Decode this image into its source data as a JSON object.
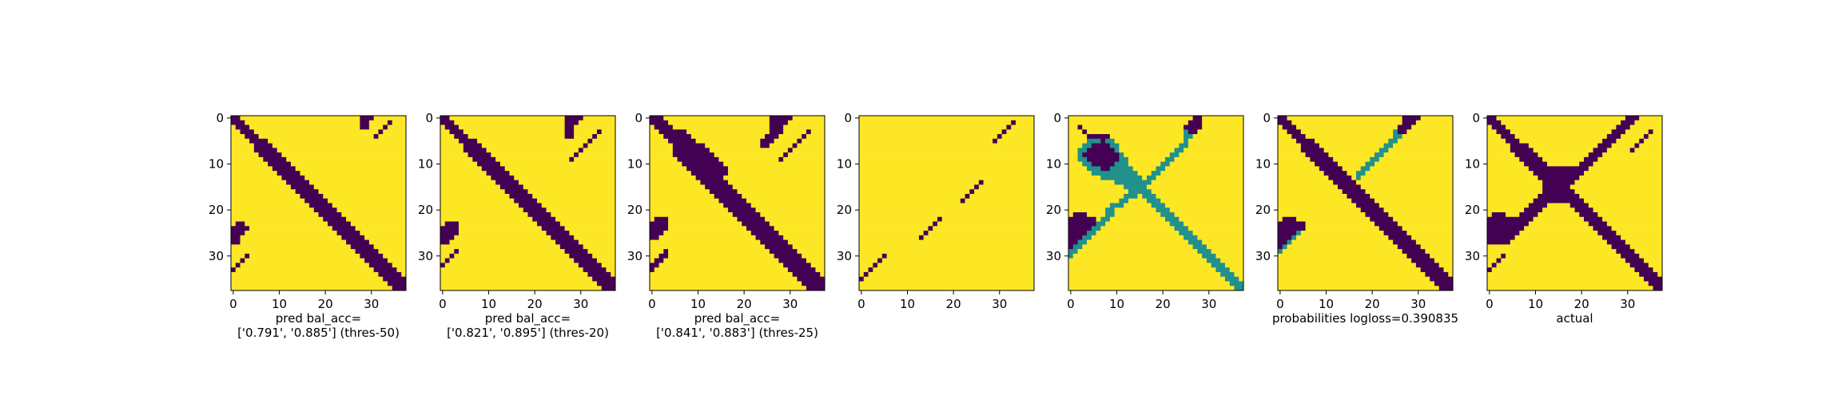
{
  "colors": {
    "low": "#440154",
    "mid": "#21918c",
    "high": "#fde725",
    "axis": "#000000",
    "background": "#ffffff"
  },
  "chart_data": [
    {
      "type": "heatmap",
      "grid_size": 38,
      "xticks": [
        0,
        10,
        20,
        30
      ],
      "yticks": [
        0,
        10,
        20,
        30
      ],
      "xlabel_lines": [
        "pred bal_acc=",
        "['0.791', '0.885'] (thres-50)"
      ],
      "matrix": [
        "11000000000000000000000000001110000000",
        "11100000000000000000000000001100001000",
        "01110000000000000000000000001100010000",
        "00111000000000000000000000000000100000",
        "00011100000000000000000000000001000000",
        "00001111000000000000000000000000000000",
        "00000111100000000000000000000000000000",
        "00000111110000000000000000000000000000",
        "00000011111000000000000000000000000000",
        "00000001111100000000000000000000000000",
        "00000000111110000000000000000000000000",
        "00000000011111000000000000000000000000",
        "00000000001111100000000000000000000000",
        "00000000000111110000000000000000000000",
        "00000000000011111000000000000000000000",
        "00000000000001111100000000000000000000",
        "00000000000000111110000000000000000000",
        "00000000000000011111000000000000000000",
        "00000000000000001111100000000000000000",
        "00000000000000000111110000000000000000",
        "00000000000000000011111000000000000000",
        "00000000000000000001111100000000000000",
        "00000000000000000000111110000000000000",
        "01100000000000000000011111000000000000",
        "11110000000000000000001111100000000000",
        "11100000000000000000000111110000000000",
        "11000000000000000000000011111000000000",
        "11000000000000000000000001111100000000",
        "00000000000000000000000000111110000000",
        "00000000000000000000000000011111000000",
        "00010000000000000000000000001111100000",
        "00100000000000000000000000000111110000",
        "01000000000000000000000000000011111000",
        "10000000000000000000000000000001111100",
        "00000000000000000000000000000000111110",
        "00000000000000000000000000000000011111",
        "00000000000000000000000000000000001111",
        "00000000000000000000000000000000000111"
      ]
    },
    {
      "type": "heatmap",
      "grid_size": 38,
      "xticks": [
        0,
        10,
        20,
        30
      ],
      "yticks": [
        0,
        10,
        20,
        30
      ],
      "xlabel_lines": [
        "pred bal_acc=",
        "['0.821', '0.895'] (thres-20)"
      ],
      "matrix": [
        "11000000000000000000000000011110000000",
        "11100000000000000000000000011100000000",
        "01110000000000000000000000011000000000",
        "00111000000000000000000000011000001000",
        "00011100000000000000000000011000010000",
        "00001111000000000000000000000000100000",
        "00000111100000000000000000000001000000",
        "00000111110000000000000000000010000000",
        "00000011111000000000000000000100000000",
        "00000001111100000000000000001000000000",
        "00000000111110000000000000000000000000",
        "00000000011111000000000000000000000000",
        "00000000001111100000000000000000000000",
        "00000000000111110000000000000000000000",
        "00000000000011111000000000000000000000",
        "00000000000001111100000000000000000000",
        "00000000000000111110000000000000000000",
        "00000000000000011111000000000000000000",
        "00000000000000001111100000000000000000",
        "00000000000000000111110000000000000000",
        "00000000000000000011111000000000000000",
        "00000000000000000001111100000000000000",
        "00000000000000000000111110000000000000",
        "01110000000000000000011111000000000000",
        "11110000000000000000001111100000000000",
        "11110000000000000000000111110000000000",
        "11100000000000000000000011111000000000",
        "11000000000000000000000001111100000000",
        "00000000000000000000000000111110000000",
        "00010000000000000000000000011111000000",
        "00100000000000000000000000001111100000",
        "01000000000000000000000000000111110000",
        "10000000000000000000000000000011111000",
        "00000000000000000000000000000001111100",
        "00000000000000000000000000000000111110",
        "00000000000000000000000000000000011111",
        "00000000000000000000000000000000001111",
        "00000000000000000000000000000000000111"
      ]
    },
    {
      "type": "heatmap",
      "grid_size": 38,
      "xticks": [
        0,
        10,
        20,
        30
      ],
      "yticks": [
        0,
        10,
        20,
        30
      ],
      "xlabel_lines": [
        "pred bal_acc=",
        "['0.841', '0.883'] (thres-25)"
      ],
      "matrix": [
        "11100000000000000000000000111110000000",
        "11110000000000000000000000111100000000",
        "01111000000000000000000000111000000000",
        "00111111000000000000000000111000001000",
        "00011111100000000000000001110000010000",
        "00001111110000000000000011100000100000",
        "00000111111100000000000011000001000000",
        "00000111111110000000000000000010000000",
        "00000111111111000000000000000100000000",
        "00000011111111100000000000001000000000",
        "00000001111111110000000000000000000000",
        "00000000111111111000000000000000000000",
        "00000000011111111000000000000000000000",
        "00000000001111110000000000000000000000",
        "00000000000111111000000000000000000000",
        "00000000000011111100000000000000000000",
        "00000000000001111110000000000000000000",
        "00000000000000111111000000000000000000",
        "00000000000000011111100000000000000000",
        "00000000000000001111110000000000000000",
        "00000000000000000111111000000000000000",
        "00000000000000000011111100000000000000",
        "01110000000000000001111110000000000000",
        "11110000000000000000111111000000000000",
        "11110000000000000000011111100000000000",
        "11100000000000000000001111110000000000",
        "11000000000000000000000111111000000000",
        "00000000000000000000000011111100000000",
        "00000000000000000000000001111110000000",
        "00010000000000000000000000111111000000",
        "00110000000000000000000000011111100000",
        "01100000000000000000000000001111110000",
        "11000000000000000000000000000111111000",
        "10000000000000000000000000000011111100",
        "00000000000000000000000000000001111110",
        "00000000000000000000000000000000111111",
        "00000000000000000000000000000000011111",
        "00000000000000000000000000000000001111"
      ]
    },
    {
      "type": "heatmap",
      "grid_size": 38,
      "xticks": [
        0,
        10,
        20,
        30
      ],
      "yticks": [
        0,
        10,
        20,
        30
      ],
      "xlabel_lines": [],
      "matrix": [
        "00000000000000000000000000000000000000",
        "00000000000000000000000000000000010000",
        "00000000000000000000000000000000100000",
        "00000000000000000000000000000001000000",
        "00000000000000000000000000000010000000",
        "00000000000000000000000000000100000000",
        "00000000000000000000000000000000000000",
        "00000000000000000000000000000000000000",
        "00000000000000000000000000000000000000",
        "00000000000000000000000000000000000000",
        "00000000000000000000000000000000000000",
        "00000000000000000000000000000000000000",
        "00000000000000000000000000000000000000",
        "00000000000000000000000000000000000000",
        "00000000000000000000000000100000000000",
        "00000000000000000000000001000000000000",
        "00000000000000000000000010000000000000",
        "00000000000000000000000100000000000000",
        "00000000000000000000001000000000000000",
        "00000000000000000000000000000000000000",
        "00000000000000000000000000000000000000",
        "00000000000000000000000000000000000000",
        "00000000000000000100000000000000000000",
        "00000000000000001000000000000000000000",
        "00000000000000010000000000000000000000",
        "00000000000000100000000000000000000000",
        "00000000000001000000000000000000000000",
        "00000000000000000000000000000000000000",
        "00000000000000000000000000000000000000",
        "00000000000000000000000000000000000000",
        "00000100000000000000000000000000000000",
        "00001000000000000000000000000000000000",
        "00010000000000000000000000000000000000",
        "00100000000000000000000000000000000000",
        "01000000000000000000000000000000000000",
        "10000000000000000000000000000000000000",
        "00000000000000000000000000000000000000",
        "00000000000000000000000000000000000000"
      ]
    },
    {
      "type": "heatmap",
      "grid_size": 38,
      "xticks": [
        0,
        10,
        20,
        30
      ],
      "yticks": [
        0,
        10,
        20,
        30
      ],
      "xlabel_lines": [],
      "matrix": [
        "00000000000000000000000000011000000000",
        "00000000000000000000000000111000000000",
        "00100000000000000000000001111000000000",
        "00010000000000000000000002110000000000",
        "00001111100000000000000002200000000000",
        "00002221220000000000000002000000000000",
        "00022111122000000000000022000000000000",
        "00221111112000000000000220000000000000",
        "00211111111200000000002200000000000000",
        "00221111111220000000022000000000000000",
        "00022111112220000000220000000000000000",
        "00002221122222000002200000000000000000",
        "00000222222222200022000000000000000000",
        "00000002222222220220000000000000000000",
        "00000000002222222200000000000000000000",
        "00000000000022222000000000000000000000",
        "00000000000002222200000000000000000000",
        "00000000000022202220000000000000000000",
        "00000000000220000222000000000000000000",
        "00000000022200000022200000000000000000",
        "00000000220000000002220000000000000000",
        "01110000220000000000222000000000000000",
        "11111102200000000000022200000000000000",
        "11111122000000000000002220000000000000",
        "11111220000000000000000222000000000000",
        "11112200000000000000000022200000000000",
        "11122000000000000000000002220000000000",
        "11220000000000000000000000222000000000",
        "12200000000000000000000000022200000000",
        "22000000000000000000000000002220000000",
        "20000000000000000000000000000222000000",
        "00000000000000000000000000000022200000",
        "00000000000000000000000000000002220000",
        "00000000000000000000000000000000222000",
        "00000000000000000000000000000000022200",
        "00000000000000000000000000000000002220",
        "00000000000000000000000000000000000222",
        "00000000000000000000000000000000000022"
      ]
    },
    {
      "type": "heatmap",
      "grid_size": 38,
      "xticks": [
        0,
        10,
        20,
        30
      ],
      "yticks": [
        0,
        10,
        20,
        30
      ],
      "xlabel_lines": [
        "probabilities logloss=0.390835"
      ],
      "matrix": [
        "11000000000000000000000000011110000000",
        "11100000000000000000000000011100000000",
        "01110000000000000000000000111000000000",
        "00111000000000000000000002110000000000",
        "00011100000000000000000002200000000000",
        "00001111000000000000000022000000000000",
        "00000111100000000000000220000000000000",
        "00000111110000000000002200000000000000",
        "00000011111000000000022000000000000000",
        "00000001111100000000220000000000000000",
        "00000000111110000002200000000000000000",
        "00000000011111000022000000000000000000",
        "00000000001111100220000000000000000000",
        "00000000000111110200000000000000000000",
        "00000000000011111000000000000000000000",
        "00000000000001111100000000000000000000",
        "00000000000000111110000000000000000000",
        "00000000000000011111000000000000000000",
        "00000000000000001111100000000000000000",
        "00000000000000000111110000000000000000",
        "00000000000000000011111000000000000000",
        "00000000000000000001111100000000000000",
        "01110000000000000000111110000000000000",
        "11111100000000000000011111000000000000",
        "11111100000000000000001111100000000000",
        "11112000000000000000000111110000000000",
        "11120000000000000000000011111000000000",
        "11200000000000000000000001111100000000",
        "12000000000000000000000000111110000000",
        "20000000000000000000000000011111000000",
        "00000000000000000000000000001111100000",
        "00000000000000000000000000000111110000",
        "00000000000000000000000000000011111000",
        "00000000000000000000000000000001111100",
        "00000000000000000000000000000000111110",
        "00000000000000000000000000000000011111",
        "00000000000000000000000000000000001111",
        "00000000000000000000000000000000000111"
      ]
    },
    {
      "type": "heatmap",
      "grid_size": 38,
      "xticks": [
        0,
        10,
        20,
        30
      ],
      "yticks": [
        0,
        10,
        20,
        30
      ],
      "xlabel_lines": [
        "actual"
      ],
      "matrix": [
        "11000000000000000000000000000011100000",
        "11100000000000000000000000000111000000",
        "01110000000000000000000000001110000000",
        "00111000000000000000000000011100000100",
        "00011100000000000000000000111000001000",
        "00001110000000000000000001110000010000",
        "00000111100000000000000011100000100000",
        "00000111110000000000000111000001000000",
        "00000011111000000000001110000000000000",
        "00000001111100000000011100000000000000",
        "00000000111110000000111000000000000000",
        "00000000011111111111110000000000000000",
        "00000000001111111111100000000000000000",
        "00000000000111111111000000000000000000",
        "00000000000011111110000000000000000000",
        "00000000000011111100000000000000000000",
        "00000000000011111110000000000000000000",
        "00000000000111111111000000000000000000",
        "00000000001111111111100000000000000000",
        "00000000011110000011110000000000000000",
        "00000000111100000001111000000000000000",
        "01110001111000000000111100000000000000",
        "11111111110000000000011110000000000000",
        "11111111100000000000001111000000000000",
        "11111111000000000000000111100000000000",
        "11111110000000000000000011110000000000",
        "11111100000000000000000001111000000000",
        "11111000000000000000000000111100000000",
        "00000000000000000000000000011110000000",
        "00000000000000000000000000001111000000",
        "00010000000000000000000000000111100000",
        "00100000000000000000000000000011110000",
        "01000000000000000000000000000001111000",
        "10000000000000000000000000000000111100",
        "00000000000000000000000000000000011110",
        "00000000000000000000000000000000001111",
        "00000000000000000000000000000000000111",
        "00000000000000000000000000000000000011"
      ]
    }
  ]
}
